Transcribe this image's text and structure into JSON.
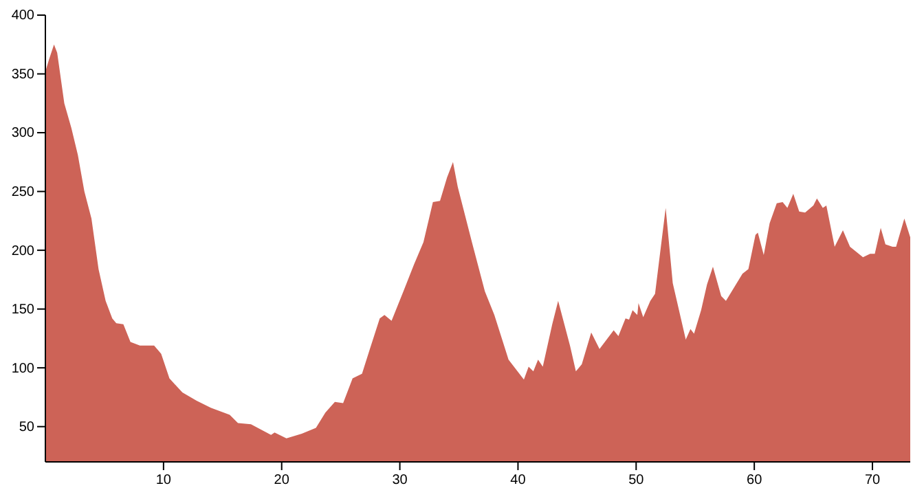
{
  "chart_data": {
    "type": "area",
    "color": "#cd6357",
    "x": [
      0,
      0.3,
      0.73,
      1.0,
      1.6,
      2.2,
      2.75,
      3.3,
      3.9,
      4.5,
      5.1,
      5.66,
      6.0,
      6.6,
      7.2,
      8.0,
      9.2,
      9.8,
      10.5,
      11.6,
      12.8,
      14,
      15.6,
      16.3,
      17.4,
      19.1,
      19.4,
      20.4,
      21.7,
      22.9,
      23.7,
      24.5,
      25.2,
      26,
      26.8,
      27.4,
      28.3,
      28.7,
      29.3,
      30.3,
      31.2,
      32,
      32.8,
      33.4,
      34,
      34.5,
      34.9,
      36.1,
      37.2,
      38,
      39.2,
      40.5,
      40.9,
      41.3,
      41.7,
      42.1,
      42.9,
      43.4,
      44.4,
      44.9,
      45.4,
      46.2,
      46.9,
      48.1,
      48.5,
      49.1,
      49.4,
      49.7,
      50.1,
      50.2,
      50.6,
      51.2,
      51.6,
      52.5,
      53.1,
      54.2,
      54.6,
      54.9,
      55.5,
      56,
      56.5,
      57.2,
      57.6,
      59,
      59.5,
      60.1,
      60.3,
      60.8,
      61.3,
      61.9,
      62.4,
      62.8,
      63.3,
      63.8,
      64.3,
      65,
      65.3,
      65.8,
      66.1,
      66.8,
      67.5,
      68.1,
      69.2,
      69.8,
      70.2,
      70.7,
      71.1,
      71.7,
      72,
      72.7,
      73.2
    ],
    "values": [
      352,
      362,
      375,
      368,
      325,
      304,
      281,
      250,
      227,
      184,
      157,
      142,
      138,
      137,
      122,
      119,
      119,
      112,
      91,
      79,
      72,
      66,
      60,
      53,
      52,
      43,
      45,
      40,
      44,
      49,
      62,
      71,
      70,
      91,
      95,
      114,
      142,
      145,
      140,
      165,
      188,
      207,
      241,
      242,
      262,
      275,
      254,
      207,
      165,
      145,
      107,
      90,
      101,
      97,
      107,
      101,
      137,
      157,
      119,
      97,
      103,
      130,
      116,
      132,
      127,
      142,
      141,
      149,
      145,
      155,
      143,
      157,
      163,
      236,
      172,
      124,
      133,
      129,
      149,
      171,
      186,
      161,
      157,
      180,
      184,
      213,
      215,
      196,
      223,
      240,
      241,
      236,
      248,
      233,
      232,
      238,
      244,
      236,
      238,
      203,
      217,
      203,
      194,
      197,
      197,
      219,
      205,
      203,
      203,
      227,
      211
    ],
    "xlim": [
      0,
      73.2
    ],
    "ylim": [
      20,
      400
    ],
    "xticks": [
      10,
      20,
      30,
      40,
      50,
      60,
      70
    ],
    "yticks": [
      50,
      100,
      150,
      200,
      250,
      300,
      350,
      400
    ]
  }
}
